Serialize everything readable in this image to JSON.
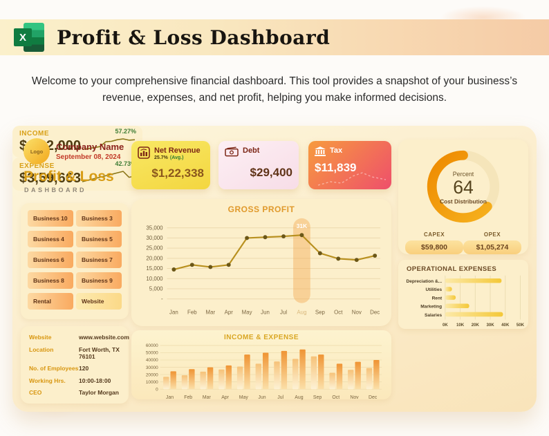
{
  "header": {
    "app": "Excel",
    "excel_letter": "X",
    "title": "Profit & Loss Dashboard"
  },
  "intro": {
    "text": "Welcome to your comprehensive financial dashboard. This tool provides a snapshot of your business’s revenue, expenses, and net profit, helping you make informed decisions."
  },
  "company": {
    "logo_label": "Logo",
    "name": "Company Name",
    "date": "September 08, 2024",
    "title": "Profit & Loss",
    "subtitle": "DASHBOARD"
  },
  "kpis": {
    "net_revenue": {
      "label": "Net Revenue",
      "pct": "25.7%",
      "pct_note": "(Avg.)",
      "value": "$1,22,338"
    },
    "debt": {
      "label": "Debt",
      "value": "$29,400"
    },
    "tax": {
      "label": "Tax",
      "value": "$11,839"
    }
  },
  "business_buttons": [
    "Business 10",
    "Business 3",
    "Business 4",
    "Business 5",
    "Business 6",
    "Business 7",
    "Business 8",
    "Business 9",
    "Rental",
    "Website"
  ],
  "company_info": [
    {
      "label": "Website",
      "value": "www.website.com"
    },
    {
      "label": "Location",
      "value": "Fort Worth, TX 76101"
    },
    {
      "label": "No. of Employees",
      "value": "120"
    },
    {
      "label": "Working Hrs.",
      "value": "10:00-18:00"
    },
    {
      "label": "CEO",
      "value": "Taylor Morgan"
    }
  ],
  "summary": {
    "income": {
      "label": "INCOME",
      "value": "$4,82,000",
      "pct": "57.27%",
      "spark": [
        2,
        2.2,
        2.6,
        3,
        4.8,
        5,
        5.6,
        5.9,
        5.4,
        5.6
      ]
    },
    "expense": {
      "label": "EXPENSE",
      "value": "$3,59,663",
      "pct": "42.73%",
      "spark": [
        1.5,
        2.2,
        2.9,
        3.6,
        4.3,
        5,
        5.7,
        6.4,
        3.6,
        4.2
      ]
    }
  },
  "colors": {
    "accent_orange": "#f39c1a",
    "gold": "#d8a018",
    "maroon": "#7c2616",
    "positive_green": "#3e7d35"
  },
  "chart_data": [
    {
      "id": "gross_profit",
      "type": "line",
      "title": "GROSS PROFIT",
      "categories": [
        "Jan",
        "Feb",
        "Mar",
        "Apr",
        "May",
        "Jun",
        "Jul",
        "Aug",
        "Sep",
        "Oct",
        "Nov",
        "Dec"
      ],
      "values": [
        14500,
        16800,
        15700,
        16800,
        30000,
        30400,
        30800,
        31400,
        22500,
        19800,
        19200,
        21300
      ],
      "ytick_labels": [
        "35,000",
        "30,000",
        "25,000",
        "20,000",
        "15,000",
        "10,000",
        "5,000",
        "-"
      ],
      "ytick_values": [
        35000,
        30000,
        25000,
        20000,
        15000,
        10000,
        5000,
        0
      ],
      "ylim": [
        0,
        37000
      ],
      "highlight": {
        "index": 7,
        "label": "31K"
      },
      "line_color": "#b8901f",
      "marker_color": "#6b5718",
      "grid": true,
      "legend": "none"
    },
    {
      "id": "income_expense",
      "type": "bar",
      "title": "INCOME & EXPENSE",
      "categories": [
        "Jan",
        "Feb",
        "Mar",
        "Apr",
        "May",
        "Jun",
        "Jul",
        "Aug",
        "Sep",
        "Oct",
        "Nov",
        "Dec"
      ],
      "series": [
        {
          "name": "Expense",
          "values": [
            17000,
            19000,
            24000,
            27000,
            31000,
            35000,
            38000,
            41500,
            45000,
            22500,
            26500,
            29000
          ],
          "color_top": "#f6c279",
          "color_bottom": "#fdf2d5"
        },
        {
          "name": "Income",
          "values": [
            24500,
            27500,
            30000,
            32500,
            47500,
            50000,
            52500,
            54500,
            47500,
            35000,
            37500,
            40000
          ],
          "color_top": "#ef9434",
          "color_bottom": "#fbdfa8"
        }
      ],
      "ytick_labels": [
        "60000",
        "50000",
        "40000",
        "30000",
        "20000",
        "10000",
        "0"
      ],
      "ytick_values": [
        60000,
        50000,
        40000,
        30000,
        20000,
        10000,
        0
      ],
      "ylim": [
        0,
        60000
      ],
      "grid": true,
      "legend": "none"
    },
    {
      "id": "operational_expenses",
      "type": "hbar",
      "title": "OPERATIONAL EXPENSES",
      "categories": [
        "Depreciation &...",
        "Utilities",
        "Rent",
        "Marketing",
        "Salaries"
      ],
      "values": [
        37500,
        4500,
        7000,
        16000,
        38500
      ],
      "xtick_labels": [
        "0K",
        "10K",
        "20K",
        "30K",
        "40K",
        "50K"
      ],
      "xtick_values": [
        0,
        10000,
        20000,
        30000,
        40000,
        50000
      ],
      "xlim": [
        0,
        50000
      ],
      "bar_color_left": "#fce9a8",
      "bar_color_right": "#f4c838",
      "grid": true,
      "legend": "none"
    },
    {
      "id": "cost_distribution",
      "type": "donut",
      "percent": 64,
      "center_top": "Percent",
      "center_value": "64",
      "center_bottom": "Cost Distribution",
      "arc_color_start": "#f6b21f",
      "arc_color_end": "#ee8a00",
      "track_color": "#f5e5ba",
      "slices": [
        {
          "name": "CAPEX",
          "value": "$59,800"
        },
        {
          "name": "OPEX",
          "value": "$1,05,274"
        }
      ]
    }
  ]
}
